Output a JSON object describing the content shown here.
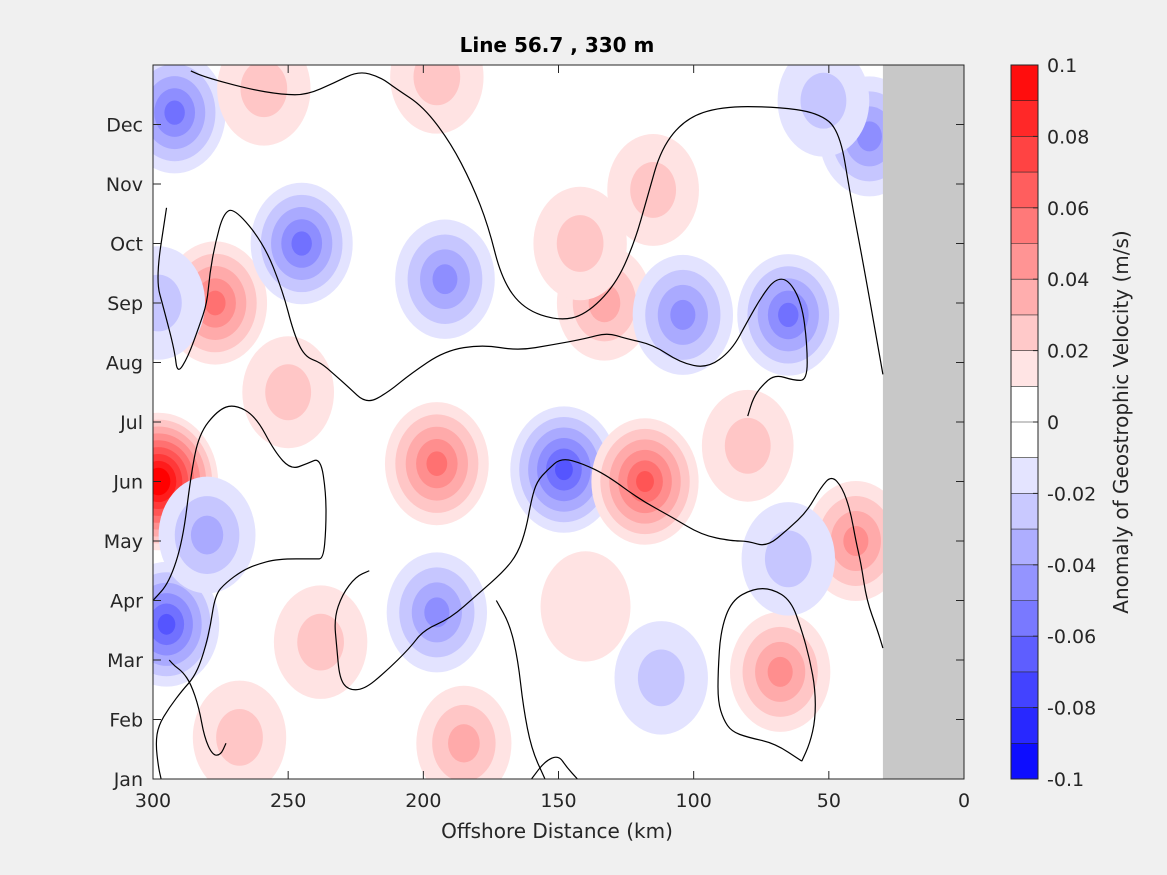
{
  "chart_data": {
    "type": "heatmap",
    "title": "Line 56.7 , 330 m",
    "xlabel": "Offshore Distance (km)",
    "colorbar_label": "Anomaly of Geostrophic Velocity (m/s)",
    "x_ticks": [
      "300",
      "250",
      "200",
      "150",
      "100",
      "50",
      "0"
    ],
    "x_tick_values": [
      300,
      250,
      200,
      150,
      100,
      50,
      0
    ],
    "xlim": [
      300,
      0
    ],
    "y_ticks": [
      "Jan",
      "Feb",
      "Mar",
      "Apr",
      "May",
      "Jun",
      "Jul",
      "Aug",
      "Sep",
      "Oct",
      "Nov",
      "Dec"
    ],
    "y_tick_values": [
      1,
      2,
      3,
      4,
      5,
      6,
      7,
      8,
      9,
      10,
      11,
      12
    ],
    "ylim": [
      1,
      13
    ],
    "clim": [
      -0.1,
      0.1
    ],
    "colorbar_ticks": [
      "0.1",
      "0.08",
      "0.06",
      "0.04",
      "0.02",
      "0",
      "-0.02",
      "-0.04",
      "-0.06",
      "-0.08",
      "-0.1"
    ],
    "colorbar_tick_values": [
      0.1,
      0.08,
      0.06,
      0.04,
      0.02,
      0,
      -0.02,
      -0.04,
      -0.06,
      -0.08,
      -0.1
    ],
    "land_mask_x_range": [
      30,
      0
    ],
    "colors": {
      "positive": "#ff0000",
      "negative": "#0000ff",
      "zero": "#ffffff",
      "land": "#c8c8c8",
      "contour": "#000000"
    },
    "features": [
      {
        "x": 298,
        "y": 6.0,
        "value": 0.095
      },
      {
        "x": 292,
        "y": 12.2,
        "value": -0.045
      },
      {
        "x": 295,
        "y": 3.6,
        "value": -0.055
      },
      {
        "x": 280,
        "y": 5.1,
        "value": -0.03
      },
      {
        "x": 277,
        "y": 9.0,
        "value": 0.05
      },
      {
        "x": 298,
        "y": 9.0,
        "value": -0.02
      },
      {
        "x": 245,
        "y": 10.0,
        "value": -0.045
      },
      {
        "x": 259,
        "y": 12.6,
        "value": 0.02
      },
      {
        "x": 192,
        "y": 9.4,
        "value": -0.038
      },
      {
        "x": 195,
        "y": 12.8,
        "value": 0.02
      },
      {
        "x": 195,
        "y": 6.3,
        "value": 0.05
      },
      {
        "x": 148,
        "y": 6.2,
        "value": -0.06
      },
      {
        "x": 118,
        "y": 6.0,
        "value": 0.06
      },
      {
        "x": 195,
        "y": 3.8,
        "value": -0.04
      },
      {
        "x": 133,
        "y": 9.0,
        "value": 0.025
      },
      {
        "x": 104,
        "y": 8.8,
        "value": -0.04
      },
      {
        "x": 65,
        "y": 8.8,
        "value": -0.045
      },
      {
        "x": 115,
        "y": 10.9,
        "value": 0.015
      },
      {
        "x": 35,
        "y": 11.8,
        "value": -0.04
      },
      {
        "x": 68,
        "y": 2.8,
        "value": 0.04
      },
      {
        "x": 40,
        "y": 5.0,
        "value": 0.04
      },
      {
        "x": 238,
        "y": 3.3,
        "value": 0.02
      },
      {
        "x": 268,
        "y": 1.7,
        "value": 0.02
      },
      {
        "x": 185,
        "y": 1.6,
        "value": 0.025
      },
      {
        "x": 112,
        "y": 2.7,
        "value": -0.02
      },
      {
        "x": 250,
        "y": 7.5,
        "value": 0.015
      },
      {
        "x": 80,
        "y": 6.6,
        "value": 0.015
      },
      {
        "x": 140,
        "y": 3.9,
        "value": 0.01
      },
      {
        "x": 142,
        "y": 10.0,
        "value": 0.02
      },
      {
        "x": 65,
        "y": 4.7,
        "value": -0.02
      },
      {
        "x": 52,
        "y": 12.4,
        "value": -0.015
      }
    ],
    "zero_contours": [
      [
        [
          286,
          12.9
        ],
        [
          281,
          12.8
        ],
        [
          265,
          12.6
        ],
        [
          252,
          12.5
        ],
        [
          243,
          12.5
        ],
        [
          233,
          12.7
        ],
        [
          224,
          12.9
        ],
        [
          216,
          12.8
        ],
        [
          210,
          12.6
        ],
        [
          200,
          12.3
        ],
        [
          190,
          11.7
        ],
        [
          182,
          11.0
        ],
        [
          176,
          10.3
        ],
        [
          171,
          9.4
        ],
        [
          163,
          8.9
        ],
        [
          150,
          8.7
        ],
        [
          140,
          8.8
        ],
        [
          129,
          9.3
        ],
        [
          122,
          10.0
        ],
        [
          117,
          10.8
        ],
        [
          112,
          11.6
        ],
        [
          103,
          12.1
        ],
        [
          90,
          12.3
        ],
        [
          70,
          12.3
        ],
        [
          54,
          12.2
        ],
        [
          46,
          11.9
        ],
        [
          42,
          10.8
        ],
        [
          37,
          9.6
        ],
        [
          30,
          7.8
        ]
      ],
      [
        [
          295,
          10.6
        ],
        [
          299,
          9.4
        ],
        [
          296,
          8.9
        ],
        [
          292,
          8.2
        ],
        [
          291,
          7.8
        ],
        [
          287,
          8.1
        ],
        [
          283,
          8.6
        ],
        [
          280,
          9.0
        ],
        [
          279,
          9.5
        ],
        [
          277,
          10.0
        ],
        [
          274,
          10.5
        ],
        [
          270,
          10.6
        ],
        [
          259,
          10.0
        ],
        [
          252,
          9.2
        ],
        [
          248,
          8.5
        ],
        [
          244,
          8.1
        ],
        [
          238,
          8.0
        ],
        [
          233,
          7.8
        ],
        [
          228,
          7.6
        ],
        [
          221,
          7.3
        ],
        [
          213,
          7.5
        ],
        [
          205,
          7.8
        ],
        [
          192,
          8.2
        ],
        [
          178,
          8.3
        ],
        [
          165,
          8.2
        ],
        [
          152,
          8.3
        ],
        [
          140,
          8.4
        ],
        [
          132,
          8.5
        ],
        [
          125,
          8.4
        ],
        [
          115,
          8.3
        ],
        [
          105,
          8.0
        ],
        [
          95,
          7.9
        ],
        [
          86,
          8.2
        ],
        [
          80,
          8.7
        ],
        [
          75,
          9.1
        ],
        [
          70,
          9.4
        ],
        [
          65,
          9.4
        ],
        [
          60,
          9.0
        ],
        [
          58,
          8.3
        ],
        [
          58,
          7.7
        ],
        [
          63,
          7.7
        ],
        [
          70,
          7.8
        ],
        [
          75,
          7.6
        ],
        [
          78,
          7.4
        ],
        [
          80,
          7.1
        ]
      ],
      [
        [
          300,
          4.0
        ],
        [
          294,
          4.3
        ],
        [
          289,
          5.0
        ],
        [
          286,
          6.1
        ],
        [
          283,
          6.8
        ],
        [
          276,
          7.2
        ],
        [
          270,
          7.3
        ],
        [
          262,
          7.1
        ],
        [
          255,
          6.5
        ],
        [
          249,
          6.2
        ],
        [
          243,
          6.3
        ],
        [
          238,
          6.4
        ],
        [
          236,
          5.8
        ],
        [
          236,
          5.2
        ],
        [
          237,
          4.7
        ],
        [
          240,
          4.7
        ],
        [
          254,
          4.7
        ],
        [
          262,
          4.6
        ],
        [
          267,
          4.5
        ],
        [
          273,
          4.3
        ],
        [
          277,
          4.1
        ],
        [
          279,
          3.5
        ],
        [
          282,
          3.0
        ],
        [
          285,
          2.7
        ],
        [
          289,
          2.5
        ],
        [
          294,
          2.2
        ],
        [
          298,
          1.9
        ],
        [
          299,
          1.6
        ],
        [
          298,
          1.2
        ],
        [
          297,
          1.0
        ]
      ],
      [
        [
          273,
          1.6
        ],
        [
          275,
          1.4
        ],
        [
          278,
          1.4
        ],
        [
          281,
          1.7
        ],
        [
          283,
          2.2
        ],
        [
          286,
          2.6
        ],
        [
          289,
          2.8
        ],
        [
          292,
          2.9
        ],
        [
          294,
          3.0
        ]
      ],
      [
        [
          220,
          4.5
        ],
        [
          225,
          4.4
        ],
        [
          230,
          4.1
        ],
        [
          233,
          3.7
        ],
        [
          232,
          3.2
        ],
        [
          231,
          2.7
        ],
        [
          228,
          2.5
        ],
        [
          222,
          2.5
        ],
        [
          214,
          2.8
        ],
        [
          205,
          3.2
        ],
        [
          200,
          3.5
        ],
        [
          190,
          3.7
        ],
        [
          180,
          4.1
        ],
        [
          170,
          4.5
        ],
        [
          165,
          4.8
        ],
        [
          162,
          5.2
        ],
        [
          160,
          5.7
        ],
        [
          158,
          6.0
        ],
        [
          154,
          6.2
        ],
        [
          149,
          6.4
        ],
        [
          141,
          6.3
        ],
        [
          132,
          6.1
        ],
        [
          120,
          5.7
        ],
        [
          108,
          5.4
        ],
        [
          97,
          5.1
        ],
        [
          86,
          5.0
        ],
        [
          80,
          5.0
        ],
        [
          73,
          4.9
        ],
        [
          65,
          5.2
        ],
        [
          58,
          5.5
        ],
        [
          53,
          5.9
        ],
        [
          49,
          6.1
        ],
        [
          45,
          5.9
        ],
        [
          42,
          5.5
        ],
        [
          40,
          5.0
        ],
        [
          38,
          4.6
        ],
        [
          36,
          4.0
        ],
        [
          32,
          3.5
        ],
        [
          30,
          3.2
        ]
      ],
      [
        [
          160,
          1.0
        ],
        [
          155,
          1.3
        ],
        [
          150,
          1.4
        ],
        [
          147,
          1.2
        ],
        [
          143,
          1.0
        ]
      ],
      [
        [
          155,
          1.0
        ],
        [
          160,
          1.5
        ],
        [
          163,
          2.2
        ],
        [
          165,
          3.0
        ],
        [
          168,
          3.6
        ],
        [
          173,
          4.0
        ]
      ],
      [
        [
          60,
          1.3
        ],
        [
          70,
          1.6
        ],
        [
          80,
          1.7
        ],
        [
          86,
          1.8
        ],
        [
          89,
          2.0
        ],
        [
          91,
          2.3
        ],
        [
          91,
          2.8
        ],
        [
          90,
          3.5
        ],
        [
          86,
          4.0
        ],
        [
          78,
          4.2
        ],
        [
          71,
          4.2
        ],
        [
          64,
          4.0
        ],
        [
          60,
          3.5
        ],
        [
          57,
          3.0
        ],
        [
          55,
          2.5
        ],
        [
          55,
          2.0
        ],
        [
          57,
          1.6
        ],
        [
          60,
          1.3
        ]
      ]
    ]
  }
}
